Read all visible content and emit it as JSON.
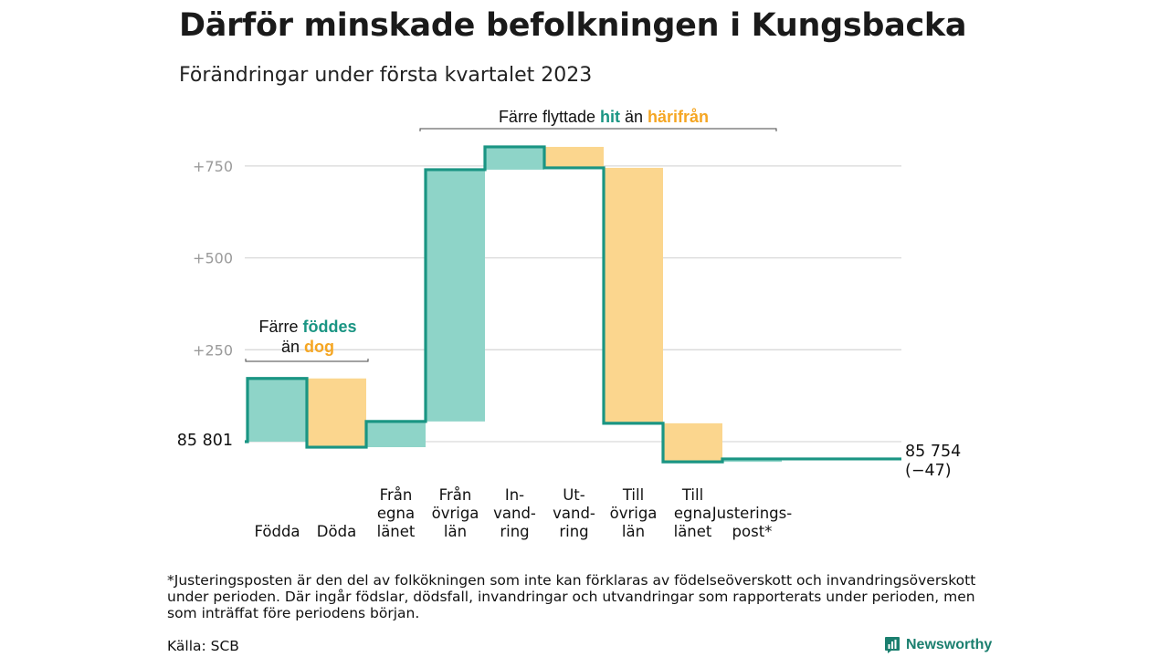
{
  "title": "Därför minskade befolkningen i Kungsbacka",
  "subtitle": "Förändringar under första kvartalet 2023",
  "chart_data": {
    "type": "waterfall",
    "base_label": "85 801",
    "end_value_label": "85 754",
    "end_change_label": "(−47)",
    "yticks": [
      {
        "value": 250,
        "label": "+250"
      },
      {
        "value": 500,
        "label": "+500"
      },
      {
        "value": 750,
        "label": "+750"
      }
    ],
    "ylim": [
      -80,
      900
    ],
    "grid": true,
    "steps": [
      {
        "label": [
          "Födda"
        ],
        "start": 0,
        "end": 172,
        "kind": "plus"
      },
      {
        "label": [
          "Döda"
        ],
        "start": 172,
        "end": -15,
        "kind": "minus"
      },
      {
        "label": [
          "Från",
          "egna",
          "länet"
        ],
        "start": -15,
        "end": 55,
        "kind": "plus"
      },
      {
        "label": [
          "Från",
          "övriga",
          "län"
        ],
        "start": 55,
        "end": 740,
        "kind": "plus"
      },
      {
        "label": [
          "In-",
          "vand-",
          "ring"
        ],
        "start": 740,
        "end": 802,
        "kind": "plus"
      },
      {
        "label": [
          "Ut-",
          "vand-",
          "ring"
        ],
        "start": 802,
        "end": 745,
        "kind": "minus"
      },
      {
        "label": [
          "Till",
          "övriga",
          "län"
        ],
        "start": 745,
        "end": 50,
        "kind": "minus"
      },
      {
        "label": [
          "Till",
          "egna",
          "länet"
        ],
        "start": 50,
        "end": -55,
        "kind": "minus"
      },
      {
        "label": [
          "Justerings-",
          "post*"
        ],
        "start": -55,
        "end": -47,
        "kind": "plus"
      }
    ],
    "annotations": {
      "births": {
        "line1_prefix": "Färre ",
        "line1_highlight": "föddes",
        "line2_prefix": "än ",
        "line2_highlight": "dog"
      },
      "migration": {
        "prefix": "Färre flyttade ",
        "highlight1": "hit",
        "middle": " än ",
        "highlight2": "härifrån"
      }
    },
    "colors": {
      "plus_fill": "#8ed4c8",
      "minus_fill": "#fbd68e",
      "line": "#1a9583",
      "plus_text": "#1a9583",
      "minus_text": "#f5a623",
      "grid": "#d9d9d9",
      "tick_text": "#9a9a9a"
    }
  },
  "footnote": "*Justeringsposten är den del av folkökningen som inte kan förklaras av födelseöverskott och invandringsöverskott under perioden. Där ingår födslar, dödsfall, invandringar och utvandringar som rapporterats under perioden, men som inträffat före periodens början.",
  "source": "Källa: SCB",
  "brand": {
    "name": "Newsworthy",
    "icon": "bar-chart-logo-icon"
  }
}
